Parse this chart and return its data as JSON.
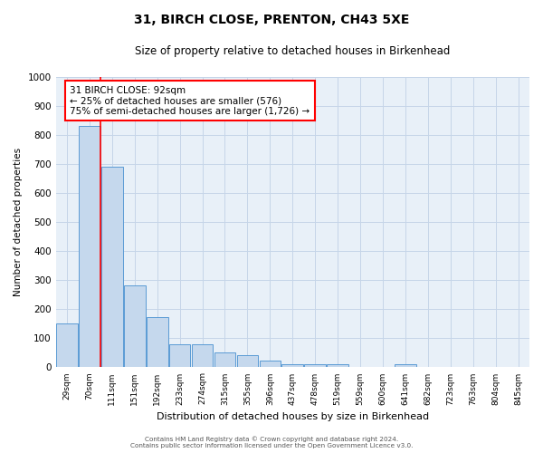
{
  "title": "31, BIRCH CLOSE, PRENTON, CH43 5XE",
  "subtitle": "Size of property relative to detached houses in Birkenhead",
  "xlabel": "Distribution of detached houses by size in Birkenhead",
  "ylabel": "Number of detached properties",
  "bar_labels": [
    "29sqm",
    "70sqm",
    "111sqm",
    "151sqm",
    "192sqm",
    "233sqm",
    "274sqm",
    "315sqm",
    "355sqm",
    "396sqm",
    "437sqm",
    "478sqm",
    "519sqm",
    "559sqm",
    "600sqm",
    "641sqm",
    "682sqm",
    "723sqm",
    "763sqm",
    "804sqm",
    "845sqm"
  ],
  "bar_heights": [
    150,
    830,
    690,
    283,
    173,
    78,
    78,
    52,
    42,
    22,
    10,
    10,
    10,
    0,
    0,
    10,
    0,
    0,
    0,
    0,
    0
  ],
  "bar_color": "#c5d8ed",
  "bar_edge_color": "#5b9bd5",
  "vline_x": 1.475,
  "vline_color": "red",
  "annotation_line1": "31 BIRCH CLOSE: 92sqm",
  "annotation_line2": "← 25% of detached houses are smaller (576)",
  "annotation_line3": "75% of semi-detached houses are larger (1,726) →",
  "annotation_box_color": "white",
  "annotation_box_edge": "red",
  "ylim": [
    0,
    1000
  ],
  "yticks": [
    0,
    100,
    200,
    300,
    400,
    500,
    600,
    700,
    800,
    900,
    1000
  ],
  "grid_color": "#c5d5e8",
  "background_color": "#e8f0f8",
  "footer_line1": "Contains HM Land Registry data © Crown copyright and database right 2024.",
  "footer_line2": "Contains public sector information licensed under the Open Government Licence v3.0."
}
